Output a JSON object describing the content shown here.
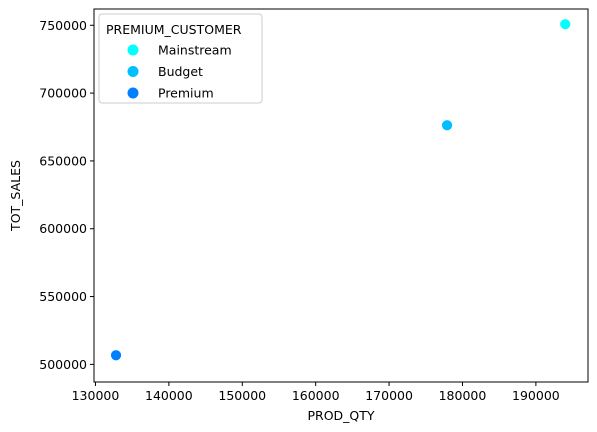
{
  "chart_data": {
    "type": "scatter",
    "xlabel": "PROD_QTY",
    "ylabel": "TOT_SALES",
    "xlim": [
      129800,
      197100
    ],
    "ylim": [
      487000,
      762000
    ],
    "x_ticks": [
      130000,
      140000,
      150000,
      160000,
      170000,
      180000,
      190000
    ],
    "y_ticks": [
      500000,
      550000,
      600000,
      650000,
      700000,
      750000
    ],
    "grid": false,
    "legend": {
      "title": "PREMIUM_CUSTOMER",
      "placement": "top-left"
    },
    "series": [
      {
        "name": "Mainstream",
        "color": "#00ffff",
        "x": [
          194000
        ],
        "y": [
          750800
        ]
      },
      {
        "name": "Budget",
        "color": "#00bfff",
        "x": [
          177900
        ],
        "y": [
          676300
        ]
      },
      {
        "name": "Premium",
        "color": "#0080ff",
        "x": [
          132800
        ],
        "y": [
          506700
        ]
      }
    ]
  }
}
